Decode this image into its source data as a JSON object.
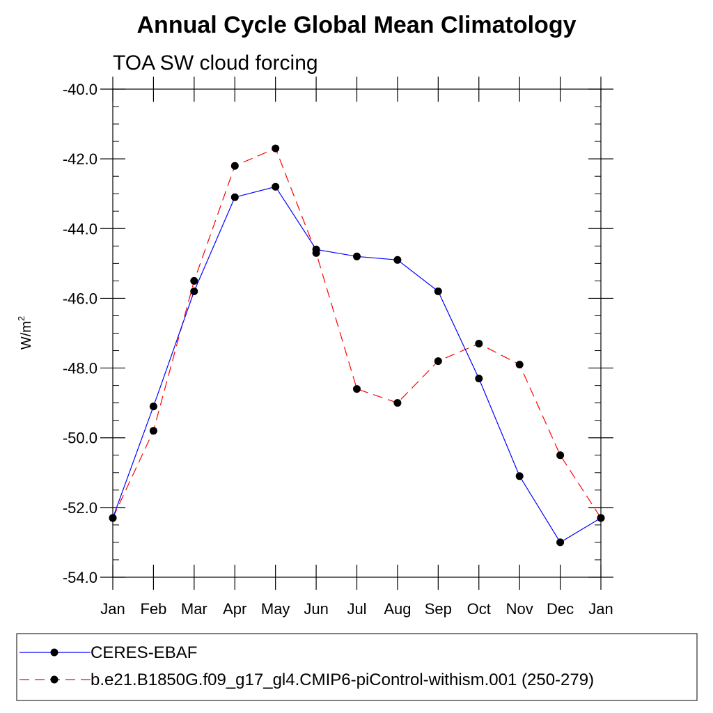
{
  "chart_data": {
    "type": "line",
    "title": "Annual Cycle Global Mean Climatology",
    "subtitle": "TOA SW cloud forcing",
    "xlabel": "",
    "ylabel": "W/m",
    "ylabel_superscript": "2",
    "categories": [
      "Jan",
      "Feb",
      "Mar",
      "Apr",
      "May",
      "Jun",
      "Jul",
      "Aug",
      "Sep",
      "Oct",
      "Nov",
      "Dec",
      "Jan"
    ],
    "ylim": [
      -54.0,
      -40.0
    ],
    "yticks": [
      "-40.0",
      "-42.0",
      "-44.0",
      "-46.0",
      "-48.0",
      "-50.0",
      "-52.0",
      "-54.0"
    ],
    "grid": false,
    "legend_position": "bottom",
    "series": [
      {
        "name": "CERES-EBAF",
        "color": "#0000ff",
        "dash": "solid",
        "marker": "filled-circle",
        "values": [
          -52.3,
          -49.1,
          -45.8,
          -43.1,
          -42.8,
          -44.6,
          -44.8,
          -44.9,
          -45.8,
          -48.3,
          -51.1,
          -53.0,
          -52.3
        ]
      },
      {
        "name": "b.e21.B1850G.f09_g17_gl4.CMIP6-piControl-withism.001 (250-279)",
        "color": "#ff0000",
        "dash": "dashed",
        "marker": "filled-circle",
        "values": [
          -52.3,
          -49.8,
          -45.5,
          -42.2,
          -41.7,
          -44.7,
          -48.6,
          -49.0,
          -47.8,
          -47.3,
          -47.9,
          -50.5,
          -52.3
        ]
      }
    ]
  }
}
